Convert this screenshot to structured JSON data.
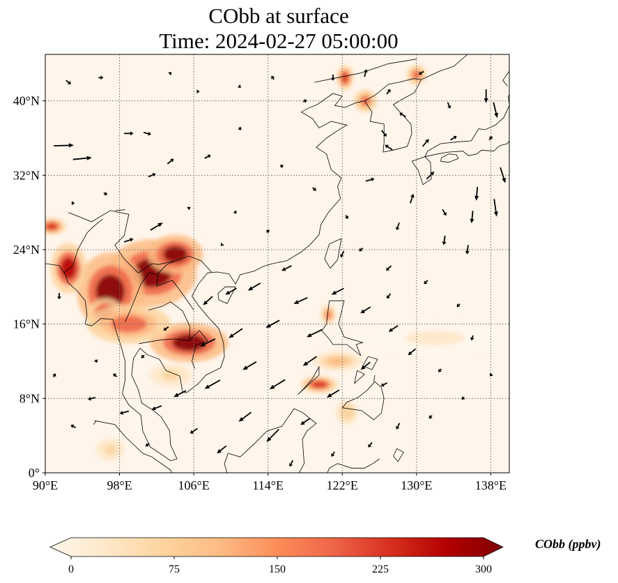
{
  "title": {
    "line1": "CObb at surface",
    "line2": "Time: 2024-02-27 05:00:00"
  },
  "map": {
    "projection": "PlateCarree",
    "extent": {
      "lon_min": 90,
      "lon_max": 140,
      "lat_min": 0,
      "lat_max": 45
    },
    "background_color": "#fff5eb",
    "gridlines": "dotted",
    "lon_ticks": [
      {
        "lon": 90,
        "label": "90°E"
      },
      {
        "lon": 98,
        "label": "98°E"
      },
      {
        "lon": 106,
        "label": "106°E"
      },
      {
        "lon": 114,
        "label": "114°E"
      },
      {
        "lon": 122,
        "label": "122°E"
      },
      {
        "lon": 130,
        "label": "130°E"
      },
      {
        "lon": 138,
        "label": "138°E"
      }
    ],
    "lat_ticks": [
      {
        "lat": 0,
        "label": "0°"
      },
      {
        "lat": 8,
        "label": "8°N"
      },
      {
        "lat": 16,
        "label": "16°N"
      },
      {
        "lat": 24,
        "label": "24°N"
      },
      {
        "lat": 32,
        "label": "32°N"
      },
      {
        "lat": 40,
        "label": "40°N"
      }
    ]
  },
  "colorbar": {
    "label": "CObb (ppbv)",
    "min": 0,
    "max": 300,
    "extend": "both",
    "cmap": "OrRd",
    "ticks": [
      {
        "value": 0,
        "label": "0"
      },
      {
        "value": 75,
        "label": "75"
      },
      {
        "value": 150,
        "label": "150"
      },
      {
        "value": 225,
        "label": "225"
      },
      {
        "value": 300,
        "label": "300"
      }
    ],
    "stops": [
      "#fff7ec",
      "#fee8c8",
      "#fdd49e",
      "#fdbb84",
      "#fc8d59",
      "#ef6548",
      "#d7301f",
      "#b30000",
      "#7f0000"
    ]
  },
  "cobb_field": {
    "units": "ppbv",
    "hotspots": [
      {
        "lon": 101.5,
        "lat": 21.5,
        "sx": 3.2,
        "sy": 2.4,
        "value": 300
      },
      {
        "lon": 97.0,
        "lat": 19.5,
        "sx": 2.4,
        "sy": 2.8,
        "value": 300
      },
      {
        "lon": 104.0,
        "lat": 23.5,
        "sx": 2.0,
        "sy": 1.4,
        "value": 290
      },
      {
        "lon": 92.5,
        "lat": 22.0,
        "sx": 1.3,
        "sy": 1.8,
        "value": 260
      },
      {
        "lon": 105.5,
        "lat": 14.0,
        "sx": 2.8,
        "sy": 1.4,
        "value": 290
      },
      {
        "lon": 96.5,
        "lat": 17.0,
        "sx": 1.3,
        "sy": 1.2,
        "value": 260
      },
      {
        "lon": 99.0,
        "lat": 16.0,
        "sx": 3.0,
        "sy": 1.4,
        "value": 180
      },
      {
        "lon": 90.7,
        "lat": 26.5,
        "sx": 1.0,
        "sy": 0.6,
        "value": 220
      },
      {
        "lon": 122.3,
        "lat": 42.5,
        "sx": 0.6,
        "sy": 0.9,
        "value": 230
      },
      {
        "lon": 124.5,
        "lat": 40.0,
        "sx": 0.8,
        "sy": 0.8,
        "value": 200
      },
      {
        "lon": 130.0,
        "lat": 42.8,
        "sx": 0.7,
        "sy": 0.7,
        "value": 170
      },
      {
        "lon": 119.5,
        "lat": 9.5,
        "sx": 1.3,
        "sy": 0.6,
        "value": 210
      },
      {
        "lon": 121.5,
        "lat": 12.0,
        "sx": 1.8,
        "sy": 0.7,
        "value": 110
      },
      {
        "lon": 120.5,
        "lat": 17.0,
        "sx": 0.6,
        "sy": 0.8,
        "value": 150
      },
      {
        "lon": 122.5,
        "lat": 6.5,
        "sx": 0.8,
        "sy": 0.9,
        "value": 90
      },
      {
        "lon": 103.5,
        "lat": 10.5,
        "sx": 1.5,
        "sy": 0.8,
        "value": 80
      },
      {
        "lon": 97.0,
        "lat": 2.5,
        "sx": 1.0,
        "sy": 0.8,
        "value": 60
      },
      {
        "lon": 132.0,
        "lat": 14.5,
        "sx": 5.0,
        "sy": 1.2,
        "value": 25
      }
    ]
  },
  "wind_vectors": [
    {
      "lon": 92.0,
      "lat": 35.2,
      "u": 3.2,
      "v": 0.1
    },
    {
      "lon": 94.0,
      "lat": 33.8,
      "u": 3.0,
      "v": 0.3
    },
    {
      "lon": 99.0,
      "lat": 36.5,
      "u": 1.5,
      "v": 0.0
    },
    {
      "lon": 101.0,
      "lat": 36.5,
      "u": 1.2,
      "v": -0.3
    },
    {
      "lon": 101.5,
      "lat": 32.0,
      "u": 1.2,
      "v": 0.5
    },
    {
      "lon": 103.5,
      "lat": 33.5,
      "u": 1.0,
      "v": 0.8
    },
    {
      "lon": 102.0,
      "lat": 26.5,
      "u": 2.0,
      "v": 1.2
    },
    {
      "lon": 99.0,
      "lat": 25.0,
      "u": 1.5,
      "v": 0.5
    },
    {
      "lon": 92.5,
      "lat": 42.0,
      "u": 0.8,
      "v": -0.6
    },
    {
      "lon": 96.0,
      "lat": 42.5,
      "u": 0.8,
      "v": 0.0
    },
    {
      "lon": 107.5,
      "lat": 34.0,
      "u": 1.0,
      "v": 0.5
    },
    {
      "lon": 111.0,
      "lat": 37.0,
      "u": 0.4,
      "v": -0.4
    },
    {
      "lon": 115.5,
      "lat": 33.0,
      "u": 0.5,
      "v": 0.3
    },
    {
      "lon": 119.0,
      "lat": 30.5,
      "u": 0.6,
      "v": -0.5
    },
    {
      "lon": 125.0,
      "lat": 31.5,
      "u": 1.4,
      "v": 0.4
    },
    {
      "lon": 127.0,
      "lat": 35.0,
      "u": -1.2,
      "v": 0.8
    },
    {
      "lon": 131.0,
      "lat": 35.5,
      "u": 1.0,
      "v": 1.2
    },
    {
      "lon": 133.0,
      "lat": 28.0,
      "u": 0.6,
      "v": -1.0
    },
    {
      "lon": 136.0,
      "lat": 27.5,
      "u": -0.2,
      "v": -2.0
    },
    {
      "lon": 136.5,
      "lat": 30.0,
      "u": -0.2,
      "v": -2.2
    },
    {
      "lon": 138.5,
      "lat": 28.5,
      "u": 0.4,
      "v": -2.8
    },
    {
      "lon": 139.3,
      "lat": 32.0,
      "u": 0.8,
      "v": -2.5
    },
    {
      "lon": 138.5,
      "lat": 39.0,
      "u": 0.6,
      "v": -2.5
    },
    {
      "lon": 137.5,
      "lat": 40.5,
      "u": 0.0,
      "v": -2.2
    },
    {
      "lon": 133.0,
      "lat": 25.0,
      "u": -0.2,
      "v": -1.5
    },
    {
      "lon": 135.5,
      "lat": 24.0,
      "u": -0.2,
      "v": -1.5
    },
    {
      "lon": 128.0,
      "lat": 26.5,
      "u": -0.4,
      "v": -1.2
    },
    {
      "lon": 129.5,
      "lat": 29.5,
      "u": 0.5,
      "v": 1.5
    },
    {
      "lon": 127.0,
      "lat": 22.0,
      "u": -0.8,
      "v": -0.8
    },
    {
      "lon": 131.0,
      "lat": 20.5,
      "u": -0.6,
      "v": -0.6
    },
    {
      "lon": 134.5,
      "lat": 18.0,
      "u": -0.5,
      "v": -0.5
    },
    {
      "lon": 136.0,
      "lat": 14.5,
      "u": -0.3,
      "v": -0.8
    },
    {
      "lon": 116.0,
      "lat": 22.0,
      "u": -1.6,
      "v": -0.8
    },
    {
      "lon": 112.5,
      "lat": 20.0,
      "u": -2.0,
      "v": -1.2
    },
    {
      "lon": 110.0,
      "lat": 19.5,
      "u": -1.8,
      "v": -1.0
    },
    {
      "lon": 107.5,
      "lat": 18.5,
      "u": -1.5,
      "v": -1.4
    },
    {
      "lon": 117.5,
      "lat": 18.5,
      "u": -2.2,
      "v": -1.0
    },
    {
      "lon": 121.5,
      "lat": 19.5,
      "u": -2.0,
      "v": -1.0
    },
    {
      "lon": 114.5,
      "lat": 16.0,
      "u": -2.2,
      "v": -1.2
    },
    {
      "lon": 110.5,
      "lat": 15.0,
      "u": -2.2,
      "v": -1.5
    },
    {
      "lon": 107.5,
      "lat": 14.0,
      "u": -2.4,
      "v": -1.2
    },
    {
      "lon": 119.0,
      "lat": 15.0,
      "u": -2.5,
      "v": -1.2
    },
    {
      "lon": 124.5,
      "lat": 17.5,
      "u": -1.6,
      "v": -1.0
    },
    {
      "lon": 127.5,
      "lat": 15.5,
      "u": -1.5,
      "v": -1.0
    },
    {
      "lon": 112.0,
      "lat": 11.5,
      "u": -2.2,
      "v": -1.3
    },
    {
      "lon": 108.0,
      "lat": 9.5,
      "u": -2.5,
      "v": -1.4
    },
    {
      "lon": 115.0,
      "lat": 9.5,
      "u": -2.5,
      "v": -1.5
    },
    {
      "lon": 118.5,
      "lat": 12.0,
      "u": -2.2,
      "v": -1.5
    },
    {
      "lon": 104.5,
      "lat": 8.5,
      "u": -2.0,
      "v": -1.0
    },
    {
      "lon": 102.0,
      "lat": 7.0,
      "u": -1.6,
      "v": -0.6
    },
    {
      "lon": 98.5,
      "lat": 6.5,
      "u": -1.5,
      "v": -0.4
    },
    {
      "lon": 95.0,
      "lat": 8.0,
      "u": -1.2,
      "v": -0.3
    },
    {
      "lon": 111.5,
      "lat": 6.0,
      "u": -2.0,
      "v": -1.5
    },
    {
      "lon": 114.5,
      "lat": 4.0,
      "u": -2.0,
      "v": -2.0
    },
    {
      "lon": 118.0,
      "lat": 5.5,
      "u": -1.5,
      "v": -1.0
    },
    {
      "lon": 121.0,
      "lat": 8.5,
      "u": -2.0,
      "v": -1.2
    },
    {
      "lon": 124.5,
      "lat": 11.5,
      "u": -1.5,
      "v": -1.2
    },
    {
      "lon": 126.5,
      "lat": 9.5,
      "u": -1.0,
      "v": -0.5
    },
    {
      "lon": 109.0,
      "lat": 2.5,
      "u": -1.5,
      "v": -1.2
    },
    {
      "lon": 106.0,
      "lat": 4.5,
      "u": -1.2,
      "v": -0.8
    },
    {
      "lon": 101.0,
      "lat": 3.0,
      "u": -0.6,
      "v": -0.5
    },
    {
      "lon": 93.0,
      "lat": 5.0,
      "u": -0.8,
      "v": 0.4
    },
    {
      "lon": 91.0,
      "lat": 10.5,
      "u": 0.3,
      "v": 0.6
    },
    {
      "lon": 95.5,
      "lat": 12.0,
      "u": 0.2,
      "v": -0.5
    },
    {
      "lon": 91.5,
      "lat": 19.0,
      "u": 0.0,
      "v": -1.0
    },
    {
      "lon": 96.5,
      "lat": 30.0,
      "u": 0.6,
      "v": -0.3
    },
    {
      "lon": 93.0,
      "lat": 29.0,
      "u": 0.5,
      "v": 0.0
    },
    {
      "lon": 103.0,
      "lat": 15.5,
      "u": -0.8,
      "v": -0.6
    },
    {
      "lon": 105.5,
      "lat": 28.5,
      "u": 0.4,
      "v": 0.3
    },
    {
      "lon": 110.5,
      "lat": 28.0,
      "u": 0.3,
      "v": -0.4
    },
    {
      "lon": 114.0,
      "lat": 26.0,
      "u": 0.5,
      "v": 0.4
    },
    {
      "lon": 109.0,
      "lat": 24.5,
      "u": -0.3,
      "v": -0.3
    },
    {
      "lon": 122.5,
      "lat": 27.5,
      "u": 0.4,
      "v": -0.6
    },
    {
      "lon": 124.0,
      "lat": 24.0,
      "u": -0.6,
      "v": -0.5
    },
    {
      "lon": 121.0,
      "lat": 42.5,
      "u": 0.0,
      "v": -1.0
    },
    {
      "lon": 124.5,
      "lat": 43.0,
      "u": 0.3,
      "v": 1.2
    },
    {
      "lon": 127.0,
      "lat": 41.0,
      "u": 0.6,
      "v": 0.8
    },
    {
      "lon": 130.5,
      "lat": 43.0,
      "u": -0.8,
      "v": -0.5
    },
    {
      "lon": 133.5,
      "lat": 39.5,
      "u": 0.4,
      "v": -1.0
    },
    {
      "lon": 134.0,
      "lat": 36.0,
      "u": 1.0,
      "v": 0.6
    },
    {
      "lon": 118.0,
      "lat": 40.0,
      "u": 0.6,
      "v": 0.3
    },
    {
      "lon": 114.5,
      "lat": 42.5,
      "u": -0.4,
      "v": 0.6
    },
    {
      "lon": 111.0,
      "lat": 41.5,
      "u": 0.3,
      "v": -0.2
    },
    {
      "lon": 106.5,
      "lat": 41.0,
      "u": 0.4,
      "v": 0.0
    },
    {
      "lon": 103.5,
      "lat": 43.0,
      "u": 0.3,
      "v": 0.3
    },
    {
      "lon": 128.5,
      "lat": 38.5,
      "u": -1.0,
      "v": 0.6
    },
    {
      "lon": 126.5,
      "lat": 36.5,
      "u": 0.8,
      "v": -1.0
    },
    {
      "lon": 131.5,
      "lat": 32.0,
      "u": 1.2,
      "v": 1.2
    },
    {
      "lon": 138.0,
      "lat": 36.0,
      "u": 0.5,
      "v": 0.6
    },
    {
      "lon": 122.0,
      "lat": 23.5,
      "u": -0.5,
      "v": -1.0
    },
    {
      "lon": 127.0,
      "lat": 19.0,
      "u": -0.6,
      "v": -0.8
    },
    {
      "lon": 129.5,
      "lat": 13.0,
      "u": -1.2,
      "v": -1.0
    },
    {
      "lon": 132.5,
      "lat": 11.0,
      "u": -0.5,
      "v": -0.5
    },
    {
      "lon": 135.0,
      "lat": 8.0,
      "u": -0.4,
      "v": -0.4
    },
    {
      "lon": 138.0,
      "lat": 10.5,
      "u": -0.3,
      "v": -0.4
    },
    {
      "lon": 128.0,
      "lat": 5.0,
      "u": -0.5,
      "v": -1.0
    },
    {
      "lon": 131.5,
      "lat": 6.0,
      "u": -0.5,
      "v": -0.5
    },
    {
      "lon": 125.0,
      "lat": 3.0,
      "u": -0.6,
      "v": -0.8
    },
    {
      "lon": 121.0,
      "lat": 2.0,
      "u": -0.5,
      "v": -0.8
    },
    {
      "lon": 116.5,
      "lat": 1.0,
      "u": -0.5,
      "v": -1.0
    },
    {
      "lon": 97.5,
      "lat": 10.5,
      "u": -0.6,
      "v": 0.5
    },
    {
      "lon": 100.5,
      "lat": 12.5,
      "u": -0.5,
      "v": -0.5
    }
  ]
}
